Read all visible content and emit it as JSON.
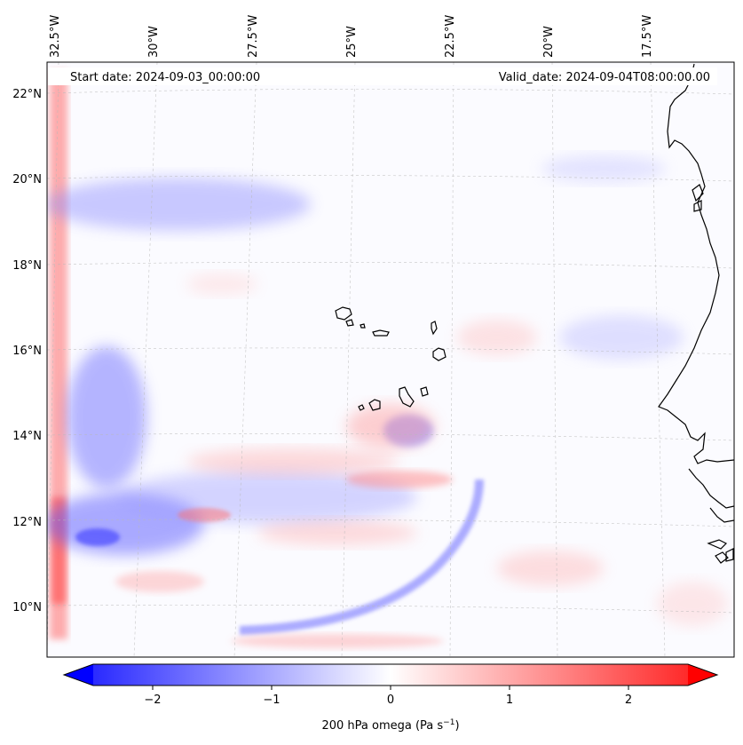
{
  "header": {
    "start_date": "Start date: 2024-09-03_00:00:00",
    "valid_date": "Valid_date: 2024-09-04T08:00:00.00"
  },
  "map": {
    "longitude_labels": [
      "32.5°W",
      "30°W",
      "27.5°W",
      "25°W",
      "22.5°W",
      "20°W",
      "17.5°W"
    ],
    "latitude_labels": [
      "22°N",
      "20°N",
      "18°N",
      "16°N",
      "14°N",
      "12°N",
      "10°N"
    ],
    "field": "200 hPa omega",
    "units": "Pa s-1"
  },
  "colorbar": {
    "ticks": [
      "−2",
      "−1",
      "0",
      "1",
      "2"
    ],
    "tick_values": [
      -2,
      -1,
      0,
      1,
      2
    ],
    "range": [
      -2.5,
      2.5
    ],
    "label_main": "200 hPa omega (Pa s",
    "label_sup": "−1",
    "label_end": ")",
    "colors": {
      "negative": "#0000ff",
      "zero": "#ffffff",
      "positive": "#ff0000"
    }
  }
}
